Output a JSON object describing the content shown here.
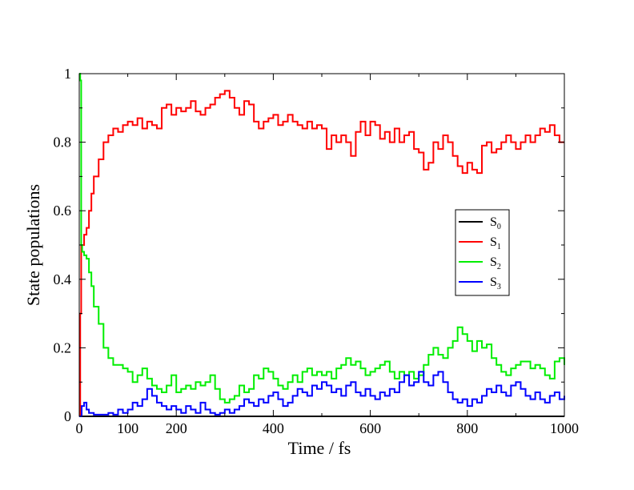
{
  "chart_data": {
    "type": "line",
    "title": "",
    "xlabel": "Time / fs",
    "ylabel": "State populations",
    "xlim": [
      0,
      1000
    ],
    "ylim": [
      0,
      1
    ],
    "x_major_ticks": [
      0,
      200,
      400,
      600,
      800,
      1000
    ],
    "x_tick_labels": [
      "0",
      "100",
      "200",
      "400",
      "600",
      "800",
      "1000"
    ],
    "x_tick_label_values": [
      0,
      100,
      200,
      400,
      600,
      800,
      1000
    ],
    "y_ticks": [
      0,
      0.2,
      0.4,
      0.6,
      0.8,
      1
    ],
    "y_tick_labels": [
      "0",
      "0.2",
      "0.4",
      "0.6",
      "0.8",
      "1"
    ],
    "legend_position": "right",
    "series": [
      {
        "name": "S0",
        "label_main": "S",
        "label_sub": "0",
        "color": "#000000",
        "x": [
          0,
          1000
        ],
        "y": [
          0,
          0
        ]
      },
      {
        "name": "S1",
        "label_main": "S",
        "label_sub": "1",
        "color": "#ff0000",
        "x": [
          0,
          2,
          4,
          6,
          10,
          15,
          20,
          25,
          30,
          40,
          50,
          60,
          70,
          80,
          90,
          100,
          110,
          120,
          130,
          140,
          150,
          160,
          170,
          180,
          190,
          200,
          210,
          220,
          230,
          240,
          250,
          260,
          270,
          280,
          290,
          300,
          310,
          320,
          330,
          340,
          350,
          360,
          370,
          380,
          390,
          400,
          410,
          420,
          430,
          440,
          450,
          460,
          470,
          480,
          490,
          500,
          510,
          520,
          530,
          540,
          550,
          560,
          570,
          580,
          590,
          600,
          610,
          620,
          630,
          640,
          650,
          660,
          670,
          680,
          690,
          700,
          710,
          720,
          730,
          740,
          750,
          760,
          770,
          780,
          790,
          800,
          810,
          820,
          830,
          840,
          850,
          860,
          870,
          880,
          890,
          900,
          910,
          920,
          930,
          940,
          950,
          960,
          970,
          980,
          990,
          1000
        ],
        "y": [
          0,
          0.3,
          0.5,
          0.5,
          0.53,
          0.55,
          0.6,
          0.65,
          0.7,
          0.75,
          0.8,
          0.82,
          0.84,
          0.83,
          0.85,
          0.86,
          0.85,
          0.87,
          0.84,
          0.86,
          0.85,
          0.84,
          0.9,
          0.91,
          0.88,
          0.9,
          0.89,
          0.9,
          0.92,
          0.89,
          0.88,
          0.9,
          0.91,
          0.93,
          0.94,
          0.95,
          0.93,
          0.9,
          0.88,
          0.92,
          0.91,
          0.86,
          0.84,
          0.86,
          0.87,
          0.88,
          0.85,
          0.86,
          0.88,
          0.86,
          0.85,
          0.84,
          0.86,
          0.84,
          0.85,
          0.84,
          0.78,
          0.82,
          0.8,
          0.82,
          0.8,
          0.76,
          0.83,
          0.86,
          0.82,
          0.86,
          0.85,
          0.81,
          0.83,
          0.8,
          0.84,
          0.8,
          0.82,
          0.83,
          0.78,
          0.77,
          0.72,
          0.74,
          0.8,
          0.78,
          0.82,
          0.8,
          0.76,
          0.73,
          0.71,
          0.74,
          0.72,
          0.71,
          0.79,
          0.8,
          0.77,
          0.78,
          0.8,
          0.82,
          0.8,
          0.78,
          0.8,
          0.82,
          0.8,
          0.82,
          0.84,
          0.83,
          0.85,
          0.82,
          0.8,
          0.8
        ]
      },
      {
        "name": "S2",
        "label_main": "S",
        "label_sub": "2",
        "color": "#00ee00",
        "x": [
          0,
          2,
          4,
          6,
          10,
          15,
          20,
          25,
          30,
          40,
          50,
          60,
          70,
          80,
          90,
          100,
          110,
          120,
          130,
          140,
          150,
          160,
          170,
          180,
          190,
          200,
          210,
          220,
          230,
          240,
          250,
          260,
          270,
          280,
          290,
          300,
          310,
          320,
          330,
          340,
          350,
          360,
          370,
          380,
          390,
          400,
          410,
          420,
          430,
          440,
          450,
          460,
          470,
          480,
          490,
          500,
          510,
          520,
          530,
          540,
          550,
          560,
          570,
          580,
          590,
          600,
          610,
          620,
          630,
          640,
          650,
          660,
          670,
          680,
          690,
          700,
          710,
          720,
          730,
          740,
          750,
          760,
          770,
          780,
          790,
          800,
          810,
          820,
          830,
          840,
          850,
          860,
          870,
          880,
          890,
          900,
          910,
          920,
          930,
          940,
          950,
          960,
          970,
          980,
          990,
          1000
        ],
        "y": [
          1.0,
          0.98,
          0.5,
          0.48,
          0.47,
          0.46,
          0.42,
          0.38,
          0.32,
          0.27,
          0.2,
          0.17,
          0.15,
          0.15,
          0.14,
          0.13,
          0.1,
          0.12,
          0.14,
          0.11,
          0.09,
          0.08,
          0.07,
          0.09,
          0.12,
          0.07,
          0.08,
          0.09,
          0.08,
          0.1,
          0.09,
          0.1,
          0.12,
          0.08,
          0.05,
          0.04,
          0.05,
          0.06,
          0.09,
          0.07,
          0.08,
          0.12,
          0.11,
          0.14,
          0.13,
          0.11,
          0.09,
          0.08,
          0.1,
          0.12,
          0.1,
          0.13,
          0.14,
          0.12,
          0.13,
          0.12,
          0.13,
          0.11,
          0.14,
          0.15,
          0.17,
          0.15,
          0.16,
          0.14,
          0.12,
          0.13,
          0.14,
          0.15,
          0.16,
          0.13,
          0.11,
          0.13,
          0.12,
          0.13,
          0.11,
          0.12,
          0.15,
          0.18,
          0.2,
          0.18,
          0.17,
          0.2,
          0.22,
          0.26,
          0.24,
          0.22,
          0.19,
          0.22,
          0.2,
          0.21,
          0.17,
          0.15,
          0.13,
          0.12,
          0.14,
          0.15,
          0.16,
          0.16,
          0.14,
          0.15,
          0.14,
          0.12,
          0.11,
          0.16,
          0.17,
          0.15
        ]
      },
      {
        "name": "S3",
        "label_main": "S",
        "label_sub": "3",
        "color": "#0000ff",
        "x": [
          0,
          5,
          10,
          15,
          20,
          30,
          40,
          50,
          60,
          70,
          80,
          90,
          100,
          110,
          120,
          130,
          140,
          150,
          160,
          170,
          180,
          190,
          200,
          210,
          220,
          230,
          240,
          250,
          260,
          270,
          280,
          290,
          300,
          310,
          320,
          330,
          340,
          350,
          360,
          370,
          380,
          390,
          400,
          410,
          420,
          430,
          440,
          450,
          460,
          470,
          480,
          490,
          500,
          510,
          520,
          530,
          540,
          550,
          560,
          570,
          580,
          590,
          600,
          610,
          620,
          630,
          640,
          650,
          660,
          670,
          680,
          690,
          700,
          710,
          720,
          730,
          740,
          750,
          760,
          770,
          780,
          790,
          800,
          810,
          820,
          830,
          840,
          850,
          860,
          870,
          880,
          890,
          900,
          910,
          920,
          930,
          940,
          950,
          960,
          970,
          980,
          990,
          1000
        ],
        "y": [
          0,
          0.03,
          0.04,
          0.02,
          0.01,
          0.005,
          0.005,
          0.005,
          0.01,
          0.005,
          0.02,
          0.01,
          0.02,
          0.04,
          0.03,
          0.05,
          0.08,
          0.06,
          0.04,
          0.03,
          0.02,
          0.03,
          0.02,
          0.01,
          0.03,
          0.02,
          0.01,
          0.04,
          0.02,
          0.01,
          0.005,
          0.01,
          0.02,
          0.01,
          0.02,
          0.03,
          0.05,
          0.04,
          0.03,
          0.05,
          0.04,
          0.06,
          0.07,
          0.05,
          0.03,
          0.04,
          0.06,
          0.08,
          0.07,
          0.06,
          0.09,
          0.08,
          0.1,
          0.09,
          0.07,
          0.08,
          0.06,
          0.09,
          0.1,
          0.07,
          0.06,
          0.08,
          0.06,
          0.05,
          0.07,
          0.06,
          0.08,
          0.07,
          0.1,
          0.12,
          0.09,
          0.1,
          0.13,
          0.1,
          0.09,
          0.12,
          0.13,
          0.1,
          0.07,
          0.05,
          0.04,
          0.05,
          0.03,
          0.05,
          0.04,
          0.06,
          0.08,
          0.07,
          0.09,
          0.07,
          0.06,
          0.09,
          0.1,
          0.08,
          0.06,
          0.05,
          0.07,
          0.05,
          0.04,
          0.06,
          0.07,
          0.05,
          0.06
        ]
      }
    ]
  }
}
